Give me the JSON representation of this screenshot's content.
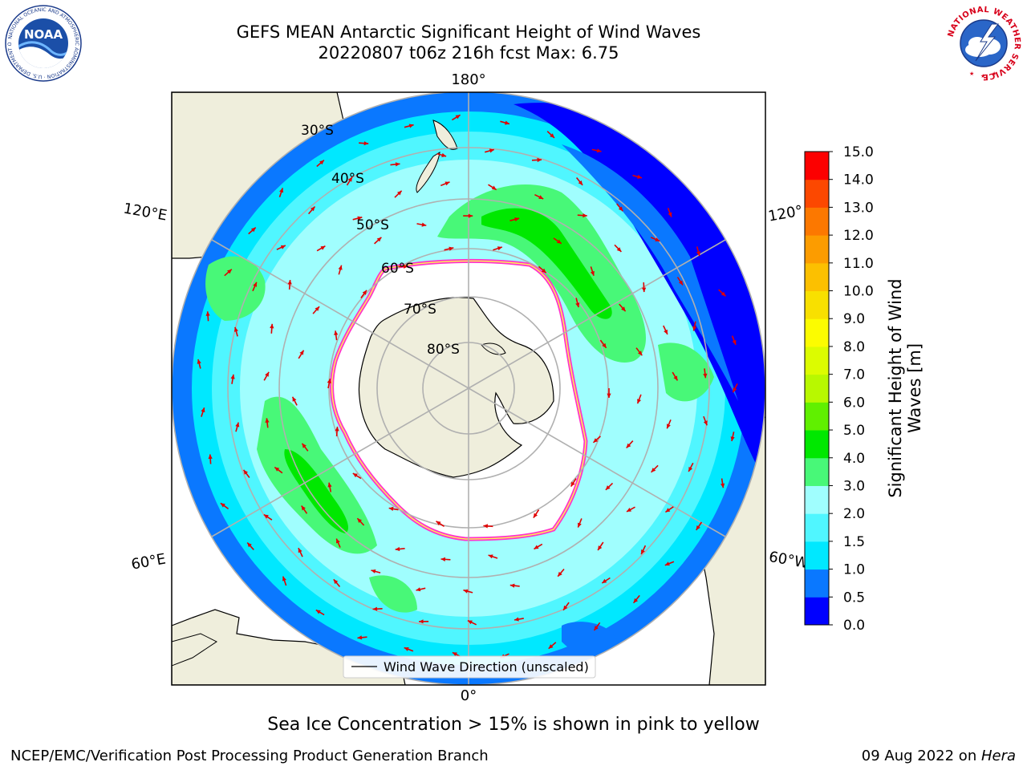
{
  "header": {
    "title_line1": "GEFS MEAN Antarctic Significant Height of Wind Waves",
    "title_line2": "20220807 t06z 216h fcst   Max: 6.75"
  },
  "logos": {
    "left_text": "NOAA",
    "left_ring_text": "NATIONAL OCEANIC AND ATMOSPHERIC ADMINISTRATION · U.S. DEPARTMENT OF COMMERCE",
    "right_ring_text": "NATIONAL WEATHER SERVICE"
  },
  "map": {
    "longitude_labels": {
      "top": "180°",
      "upper_left": "120°E",
      "upper_right": "120°",
      "lower_left": "60°E",
      "lower_right": "60°W",
      "bottom": "0°"
    },
    "latitude_labels": [
      "30°S",
      "40°S",
      "50°S",
      "60°S",
      "70°S",
      "80°S"
    ],
    "legend": "Wind Wave Direction (unscaled)",
    "colors": {
      "land": "#efeedc",
      "ice": "#ffffff",
      "ice_edge": [
        "#ff33cc",
        "#ffee55"
      ],
      "arrow": "#e00000",
      "grid": "#b0b0b0"
    }
  },
  "colorbar": {
    "label_line1": "Significant Height of Wind",
    "label_line2": "Waves [m]",
    "ticks": [
      "0.0",
      "0.5",
      "1.0",
      "1.5",
      "2.0",
      "3.0",
      "4.0",
      "5.0",
      "6.0",
      "7.0",
      "8.0",
      "9.0",
      "10.0",
      "11.0",
      "12.0",
      "13.0",
      "14.0",
      "15.0"
    ],
    "colors": [
      "#0000ff",
      "#0a78ff",
      "#00e8ff",
      "#50f6ff",
      "#a0fefe",
      "#48f878",
      "#00e800",
      "#60f000",
      "#b8f800",
      "#dcfc00",
      "#fcfc00",
      "#f8e000",
      "#fcc000",
      "#fc9c00",
      "#fc7800",
      "#fc4800",
      "#fc0000"
    ]
  },
  "caption": "Sea Ice Concentration > 15% is shown in pink to yellow",
  "footer": {
    "left": "NCEP/EMC/Verification Post Processing Product Generation Branch",
    "right_prefix": "09 Aug 2022 on ",
    "right_host": "Hera"
  }
}
